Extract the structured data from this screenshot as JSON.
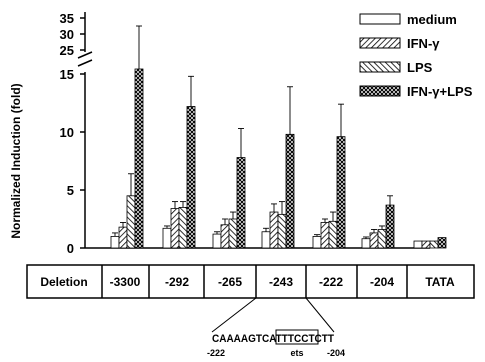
{
  "chart_data": {
    "type": "bar",
    "ylabel": "Normalized Induction (fold)",
    "y_ticks_lower": [
      "0",
      "5",
      "10",
      "15"
    ],
    "y_ticks_upper": [
      "25",
      "30",
      "35"
    ],
    "ylim_lower": [
      0,
      15
    ],
    "ylim_upper": [
      23,
      35
    ],
    "axis_break": true,
    "legend_position": "top-right",
    "groups": [
      "-3300",
      "-292",
      "-265",
      "-243",
      "-222",
      "-204",
      "TATA"
    ],
    "series": [
      {
        "name": "medium",
        "pattern": "open",
        "values": [
          1.0,
          1.7,
          1.2,
          1.4,
          1.0,
          0.8,
          0.6
        ],
        "errors": [
          0.3,
          0.2,
          0.2,
          0.3,
          0.15,
          0.15,
          0.05
        ]
      },
      {
        "name": "IFN-γ",
        "pattern": "diagonal",
        "values": [
          1.8,
          3.4,
          2.0,
          3.1,
          2.2,
          1.3,
          0.6
        ],
        "errors": [
          0.4,
          0.6,
          0.5,
          0.7,
          0.3,
          0.3,
          0.05
        ]
      },
      {
        "name": "LPS",
        "pattern": "back-diagonal",
        "values": [
          4.5,
          3.5,
          2.5,
          2.9,
          2.3,
          1.6,
          0.6
        ],
        "errors": [
          1.9,
          0.5,
          0.6,
          1.1,
          0.8,
          0.3,
          0.05
        ]
      },
      {
        "name": "IFN-γ+LPS",
        "pattern": "crosshatch",
        "values": [
          20.0,
          12.2,
          7.8,
          9.8,
          9.6,
          3.7,
          0.9
        ],
        "errors": [
          13.0,
          2.6,
          2.5,
          4.1,
          2.8,
          0.8,
          0.05
        ]
      }
    ]
  },
  "table": {
    "label": "Deletion",
    "cells": [
      "-3300",
      "-292",
      "-265",
      "-243",
      "-222",
      "-204",
      "TATA"
    ]
  },
  "sequence": {
    "text": "CAAAAGTCATTTCCTCTT",
    "boxed": "TTTCCT",
    "start": "-222",
    "end": "-204",
    "motif": "ets"
  },
  "colors": {
    "ink": "#000000",
    "background": "#ffffff"
  }
}
